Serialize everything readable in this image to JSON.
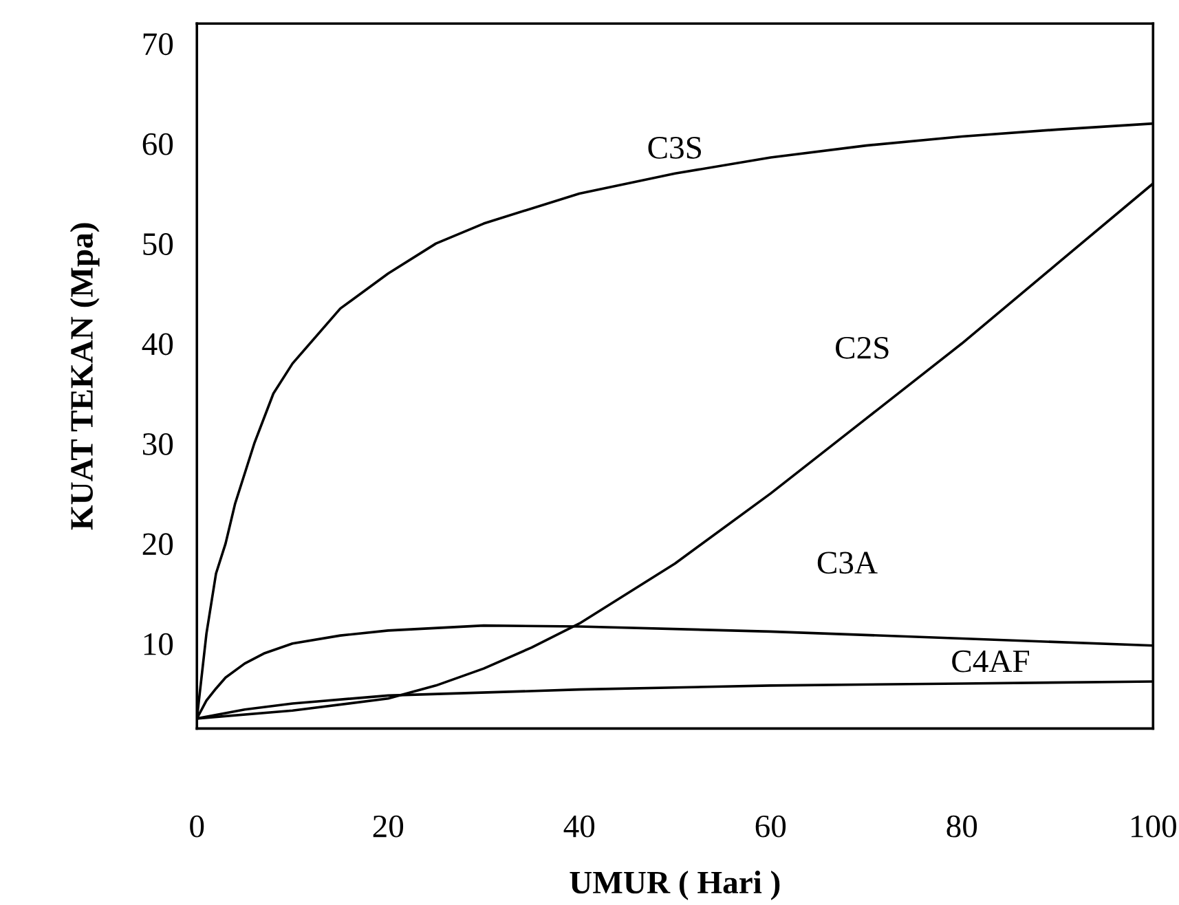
{
  "chart_data": {
    "type": "line",
    "xlabel": "UMUR ( Hari )",
    "ylabel": "KUAT TEKAN (Mpa)",
    "xlim": [
      0,
      100
    ],
    "ylim": [
      1.5,
      72
    ],
    "xticks": [
      0,
      20,
      40,
      60,
      80,
      100
    ],
    "yticks": [
      10,
      20,
      30,
      40,
      50,
      60,
      70
    ],
    "grid": false,
    "marker": "none",
    "line_style": "solid",
    "series": [
      {
        "name": "C3S",
        "color": "#000000",
        "x": [
          0,
          1,
          2,
          3,
          4,
          6,
          8,
          10,
          15,
          20,
          25,
          30,
          40,
          50,
          60,
          70,
          80,
          90,
          100
        ],
        "values": [
          2.5,
          11,
          17,
          20,
          24,
          30,
          35,
          38,
          43.5,
          47,
          50,
          52,
          55,
          57,
          58.6,
          59.8,
          60.7,
          61.4,
          62
        ]
      },
      {
        "name": "C2S",
        "color": "#000000",
        "x": [
          0,
          10,
          20,
          25,
          30,
          35,
          40,
          50,
          60,
          70,
          80,
          90,
          100
        ],
        "values": [
          2.5,
          3.3,
          4.5,
          5.8,
          7.5,
          9.6,
          12,
          18,
          25,
          32.5,
          40,
          48,
          56
        ]
      },
      {
        "name": "C3A",
        "color": "#000000",
        "x": [
          0,
          1,
          2,
          3,
          5,
          7,
          10,
          15,
          20,
          30,
          40,
          60,
          80,
          100
        ],
        "values": [
          2.5,
          4.3,
          5.5,
          6.6,
          8,
          9,
          10,
          10.8,
          11.3,
          11.8,
          11.7,
          11.2,
          10.5,
          9.8
        ]
      },
      {
        "name": "C4AF",
        "color": "#000000",
        "x": [
          0,
          5,
          10,
          20,
          40,
          60,
          80,
          100
        ],
        "values": [
          2.5,
          3.4,
          4,
          4.8,
          5.4,
          5.8,
          6,
          6.2
        ]
      }
    ]
  }
}
